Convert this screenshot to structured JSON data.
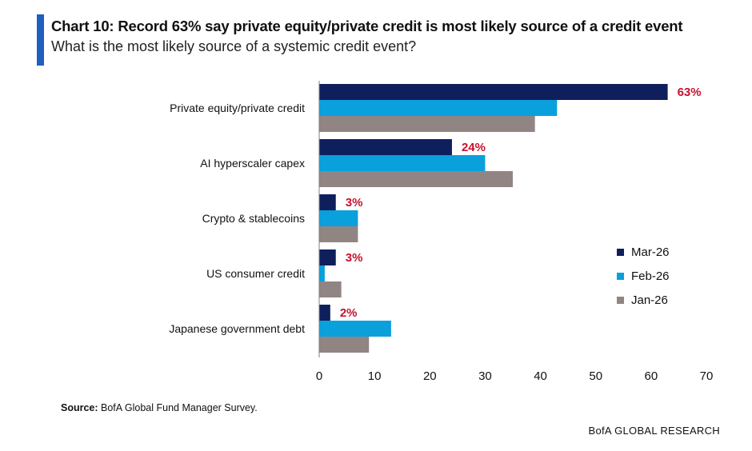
{
  "header": {
    "title": "Chart 10: Record 63% say private equity/private credit is most likely source of a credit event",
    "subtitle": "What is the most likely source of a systemic credit event?",
    "accent_color": "#1f5fbf"
  },
  "chart_data": {
    "type": "bar",
    "orientation": "horizontal",
    "categories": [
      "Private equity/private credit",
      "AI hyperscaler capex",
      "Crypto & stablecoins",
      "US consumer credit",
      "Japanese government debt"
    ],
    "series": [
      {
        "name": "Mar-26",
        "color": "#0f1f5c",
        "values": [
          63,
          24,
          3,
          3,
          2
        ],
        "labels": [
          "63%",
          "24%",
          "3%",
          "3%",
          "2%"
        ]
      },
      {
        "name": "Feb-26",
        "color": "#0aa0dc",
        "values": [
          43,
          30,
          7,
          1,
          13
        ]
      },
      {
        "name": "Jan-26",
        "color": "#918584",
        "values": [
          39,
          35,
          7,
          4,
          9
        ]
      }
    ],
    "xlim": [
      0,
      70
    ],
    "xticks": [
      "0",
      "10",
      "20",
      "30",
      "40",
      "50",
      "60",
      "70"
    ],
    "data_label_color": "#c8102e",
    "legend_position": "right",
    "grid": false
  },
  "footer": {
    "source_label": "Source:",
    "source_text": " BofA Global Fund Manager Survey.",
    "brand": "BofA GLOBAL RESEARCH"
  }
}
